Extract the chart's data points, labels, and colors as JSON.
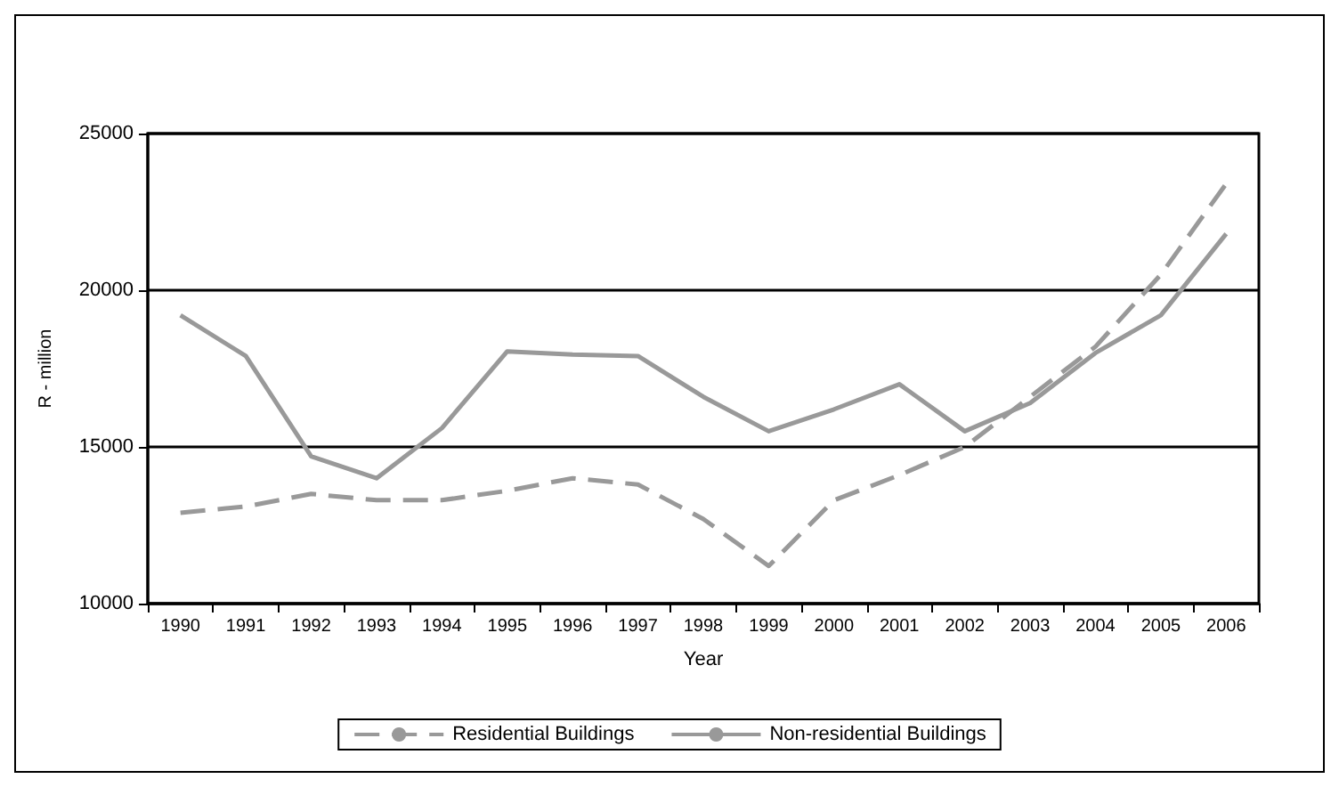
{
  "chart_data": {
    "type": "line",
    "xlabel": "Year",
    "ylabel": "R - million",
    "categories": [
      "1990",
      "1991",
      "1992",
      "1993",
      "1994",
      "1995",
      "1996",
      "1997",
      "1998",
      "1999",
      "2000",
      "2001",
      "2002",
      "2003",
      "2004",
      "2005",
      "2006"
    ],
    "series": [
      {
        "name": "Residential Buildings",
        "color": "#999999",
        "line_style": "dashed",
        "values": [
          12900,
          13100,
          13500,
          13300,
          13300,
          13600,
          14000,
          13800,
          12700,
          11200,
          13300,
          14100,
          15000,
          16600,
          18200,
          20500,
          23400
        ]
      },
      {
        "name": "Non-residential Buildings",
        "color": "#999999",
        "line_style": "solid",
        "values": [
          19200,
          17900,
          14700,
          14000,
          15600,
          18050,
          17950,
          17900,
          16600,
          15500,
          16200,
          17000,
          15500,
          16400,
          18000,
          19200,
          21800
        ]
      }
    ],
    "ylim": [
      10000,
      25000
    ],
    "yticks": [
      10000,
      15000,
      20000,
      25000
    ],
    "grid": "y",
    "legend": "bottom",
    "marker": "none"
  }
}
